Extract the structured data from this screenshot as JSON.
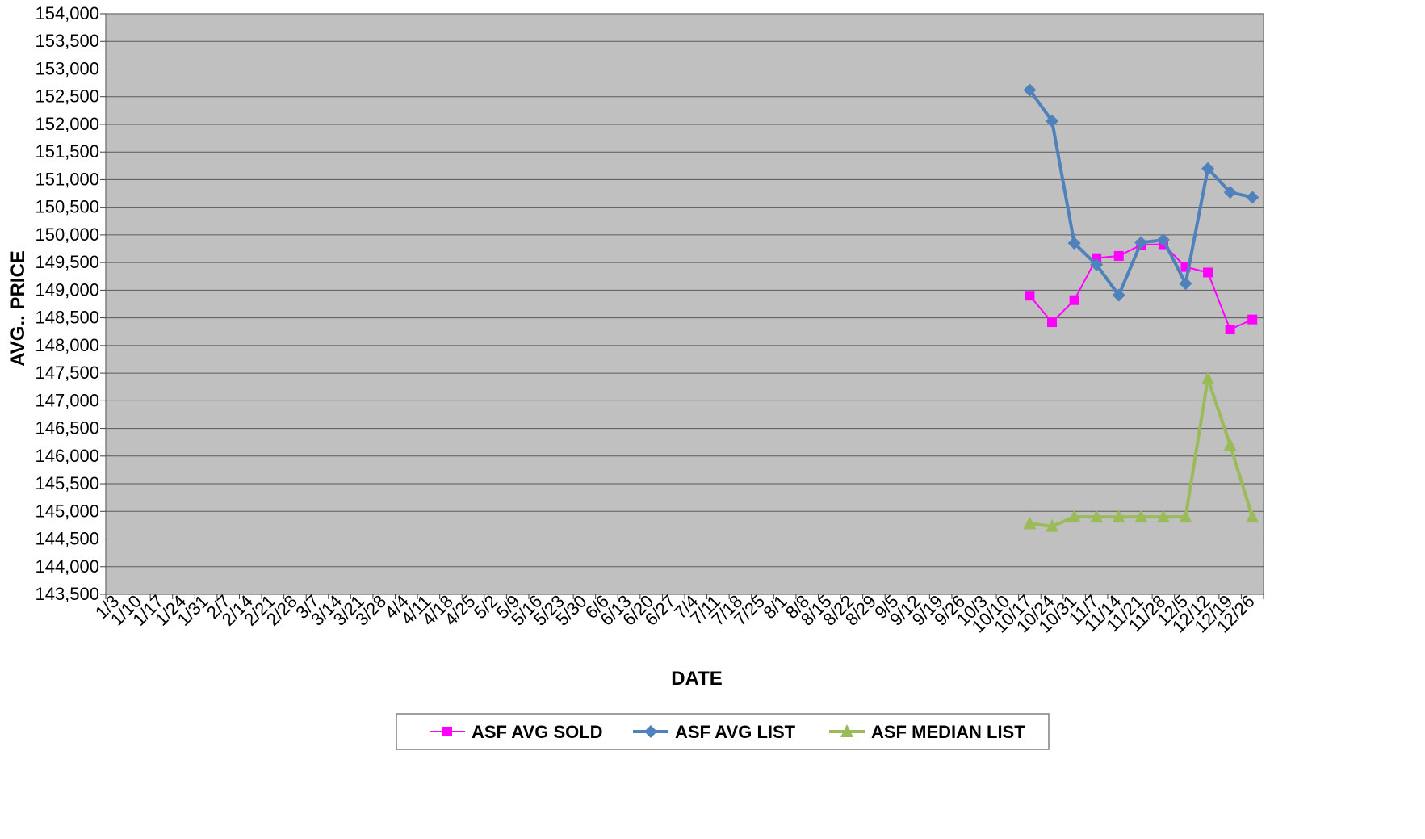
{
  "chart_data": {
    "type": "line",
    "title": "",
    "xlabel": "DATE",
    "ylabel": "AVG.. PRICE",
    "ylim": [
      143500,
      154000
    ],
    "y_ticks": [
      "143,500",
      "144,000",
      "144,500",
      "145,000",
      "145,500",
      "146,000",
      "146,500",
      "147,000",
      "147,500",
      "148,000",
      "148,500",
      "149,000",
      "149,500",
      "150,000",
      "150,500",
      "151,000",
      "151,500",
      "152,000",
      "152,500",
      "153,000",
      "153,500",
      "154,000"
    ],
    "categories": [
      "1/3",
      "1/10",
      "1/17",
      "1/24",
      "1/31",
      "2/7",
      "2/14",
      "2/21",
      "2/28",
      "3/7",
      "3/14",
      "3/21",
      "3/28",
      "4/4",
      "4/11",
      "4/18",
      "4/25",
      "5/2",
      "5/9",
      "5/16",
      "5/23",
      "5/30",
      "6/6",
      "6/13",
      "6/20",
      "6/27",
      "7/4",
      "7/11",
      "7/18",
      "7/25",
      "8/1",
      "8/8",
      "8/15",
      "8/22",
      "8/29",
      "9/5",
      "9/12",
      "9/19",
      "9/26",
      "10/3",
      "10/10",
      "10/17",
      "10/24",
      "10/31",
      "11/7",
      "11/14",
      "11/21",
      "11/28",
      "12/5",
      "12/12",
      "12/19",
      "12/26"
    ],
    "grid": true,
    "plot_background": "#c0c0c0",
    "legend_position": "bottom",
    "series": [
      {
        "name": "ASF AVG SOLD",
        "color": "#ff00ff",
        "marker": "square",
        "points": [
          {
            "x": "10/17",
            "y": 148900
          },
          {
            "x": "10/24",
            "y": 148420
          },
          {
            "x": "10/31",
            "y": 148820
          },
          {
            "x": "11/7",
            "y": 149580
          },
          {
            "x": "11/14",
            "y": 149620
          },
          {
            "x": "11/21",
            "y": 149820
          },
          {
            "x": "11/28",
            "y": 149830
          },
          {
            "x": "12/5",
            "y": 149420
          },
          {
            "x": "12/12",
            "y": 149320
          },
          {
            "x": "12/19",
            "y": 148290
          },
          {
            "x": "12/26",
            "y": 148470
          }
        ]
      },
      {
        "name": "ASF AVG LIST",
        "color": "#4f81bd",
        "marker": "diamond",
        "points": [
          {
            "x": "10/17",
            "y": 152620
          },
          {
            "x": "10/24",
            "y": 152060
          },
          {
            "x": "10/31",
            "y": 149850
          },
          {
            "x": "11/7",
            "y": 149460
          },
          {
            "x": "11/14",
            "y": 148910
          },
          {
            "x": "11/21",
            "y": 149860
          },
          {
            "x": "11/28",
            "y": 149910
          },
          {
            "x": "12/5",
            "y": 149120
          },
          {
            "x": "12/12",
            "y": 151200
          },
          {
            "x": "12/19",
            "y": 150770
          },
          {
            "x": "12/26",
            "y": 150680
          }
        ]
      },
      {
        "name": "ASF MEDIAN LIST",
        "color": "#9bbb59",
        "marker": "triangle",
        "points": [
          {
            "x": "10/17",
            "y": 144780
          },
          {
            "x": "10/24",
            "y": 144730
          },
          {
            "x": "10/31",
            "y": 144900
          },
          {
            "x": "11/7",
            "y": 144900
          },
          {
            "x": "11/14",
            "y": 144900
          },
          {
            "x": "11/21",
            "y": 144900
          },
          {
            "x": "11/28",
            "y": 144900
          },
          {
            "x": "12/5",
            "y": 144900
          },
          {
            "x": "12/12",
            "y": 147400
          },
          {
            "x": "12/19",
            "y": 146200
          },
          {
            "x": "12/26",
            "y": 144900
          }
        ]
      }
    ]
  }
}
